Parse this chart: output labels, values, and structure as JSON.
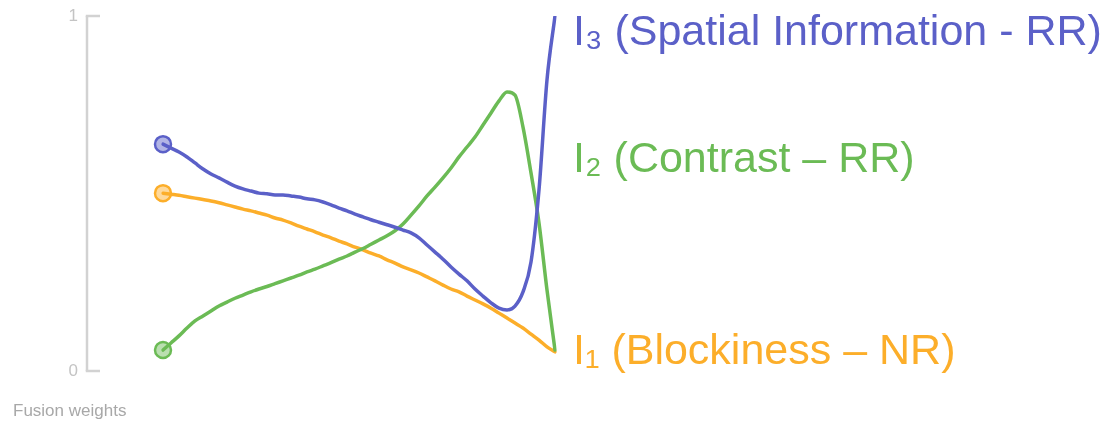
{
  "chart_data": {
    "type": "line",
    "ylabel": "Fusion weights",
    "categories": [
      null,
      null,
      null,
      null,
      null,
      null,
      null,
      null,
      null,
      null,
      null,
      null,
      null,
      null,
      null,
      null,
      null,
      null,
      null,
      null,
      null,
      null,
      null,
      null,
      null,
      null,
      null,
      null,
      null,
      null,
      null,
      null,
      null,
      null,
      null,
      null,
      null,
      null,
      null,
      null,
      null,
      null,
      null,
      null,
      null,
      null,
      null,
      null,
      null,
      null
    ],
    "ylim": [
      0,
      1
    ],
    "yticks": [
      0,
      1
    ],
    "tick_labels": "y",
    "marker": "circle",
    "series": [
      {
        "name": "I₃ (Spatial Information - RR)",
        "color": "#5b60c8",
        "marker": "none",
        "values": [
          0.639,
          0.628,
          0.617,
          0.603,
          0.586,
          0.569,
          0.555,
          0.544,
          0.532,
          0.521,
          0.513,
          0.507,
          0.501,
          0.499,
          0.496,
          0.496,
          0.493,
          0.49,
          0.485,
          0.482,
          0.476,
          0.468,
          0.459,
          0.451,
          0.442,
          0.434,
          0.426,
          0.419,
          0.412,
          0.405,
          0.397,
          0.389,
          0.375,
          0.355,
          0.335,
          0.315,
          0.293,
          0.273,
          0.254,
          0.231,
          0.211,
          0.192,
          0.177,
          0.172,
          0.183,
          0.223,
          0.307,
          0.51,
          0.82,
          1.0
        ]
      },
      {
        "name": "I₂ (Contrast – RR)",
        "color": "#6bbb55",
        "marker": "none",
        "values": [
          0.059,
          0.079,
          0.099,
          0.121,
          0.141,
          0.155,
          0.169,
          0.183,
          0.194,
          0.205,
          0.214,
          0.223,
          0.231,
          0.238,
          0.246,
          0.254,
          0.262,
          0.27,
          0.279,
          0.287,
          0.296,
          0.305,
          0.315,
          0.324,
          0.335,
          0.345,
          0.357,
          0.369,
          0.381,
          0.395,
          0.414,
          0.439,
          0.465,
          0.493,
          0.518,
          0.544,
          0.572,
          0.603,
          0.631,
          0.659,
          0.693,
          0.727,
          0.761,
          0.786,
          0.777,
          0.687,
          0.558,
          0.417,
          0.228,
          0.059
        ]
      },
      {
        "name": "I₁ (Blockiness – NR)",
        "color": "#fcae2a",
        "marker": "none",
        "values": [
          0.501,
          0.498,
          0.495,
          0.491,
          0.487,
          0.483,
          0.479,
          0.474,
          0.468,
          0.462,
          0.456,
          0.451,
          0.445,
          0.439,
          0.431,
          0.425,
          0.417,
          0.408,
          0.4,
          0.392,
          0.383,
          0.375,
          0.366,
          0.358,
          0.349,
          0.341,
          0.332,
          0.324,
          0.313,
          0.304,
          0.293,
          0.285,
          0.276,
          0.265,
          0.254,
          0.242,
          0.231,
          0.223,
          0.211,
          0.2,
          0.189,
          0.177,
          0.163,
          0.149,
          0.135,
          0.121,
          0.104,
          0.087,
          0.068,
          0.054
        ]
      },
      {
        "type": "scatter",
        "color": "#5b60c8",
        "values": [
          0.639,
          null,
          null,
          null,
          null,
          null,
          null,
          null,
          null,
          null,
          null,
          null,
          null,
          null,
          null,
          null,
          null,
          null,
          null,
          null,
          null,
          null,
          null,
          null,
          null,
          null,
          null,
          null,
          null,
          null,
          null,
          null,
          null,
          null,
          null,
          null,
          null,
          null,
          null,
          null,
          null,
          null,
          null,
          null,
          null,
          null,
          null,
          null,
          null,
          null
        ]
      },
      {
        "type": "scatter",
        "color": "#6bbb55",
        "values": [
          0.059,
          null,
          null,
          null,
          null,
          null,
          null,
          null,
          null,
          null,
          null,
          null,
          null,
          null,
          null,
          null,
          null,
          null,
          null,
          null,
          null,
          null,
          null,
          null,
          null,
          null,
          null,
          null,
          null,
          null,
          null,
          null,
          null,
          null,
          null,
          null,
          null,
          null,
          null,
          null,
          null,
          null,
          null,
          null,
          null,
          null,
          null,
          null,
          null,
          null
        ]
      },
      {
        "type": "scatter",
        "color": "#fcae2a",
        "values": [
          0.501,
          null,
          null,
          null,
          null,
          null,
          null,
          null,
          null,
          null,
          null,
          null,
          null,
          null,
          null,
          null,
          null,
          null,
          null,
          null,
          null,
          null,
          null,
          null,
          null,
          null,
          null,
          null,
          null,
          null,
          null,
          null,
          null,
          null,
          null,
          null,
          null,
          null,
          null,
          null,
          null,
          null,
          null,
          null,
          null,
          null,
          null,
          null,
          null,
          null
        ]
      }
    ]
  }
}
